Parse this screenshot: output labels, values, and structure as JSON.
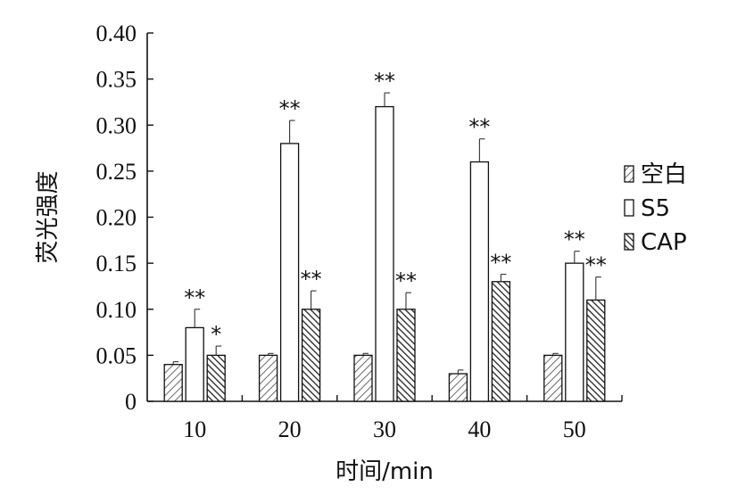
{
  "chart_data": {
    "type": "bar",
    "xlabel": "时间/min",
    "ylabel": "荧光强度",
    "categories": [
      "10",
      "20",
      "30",
      "40",
      "50"
    ],
    "ylim": [
      0,
      0.4
    ],
    "yticks": [
      "0",
      "0.05",
      "0.10",
      "0.15",
      "0.20",
      "0.25",
      "0.30",
      "0.35",
      "0.40"
    ],
    "grid": false,
    "legend_position": "right",
    "series": [
      {
        "name": "空白",
        "pattern": "light-diagonal",
        "values": [
          0.04,
          0.05,
          0.05,
          0.03,
          0.05
        ],
        "errors": [
          0.003,
          0.002,
          0.002,
          0.004,
          0.002
        ],
        "significance": [
          "",
          "",
          "",
          "",
          ""
        ]
      },
      {
        "name": "S5",
        "pattern": "empty",
        "values": [
          0.08,
          0.28,
          0.32,
          0.26,
          0.15
        ],
        "errors": [
          0.02,
          0.025,
          0.015,
          0.025,
          0.013
        ],
        "significance": [
          "**",
          "**",
          "**",
          "**",
          "**"
        ]
      },
      {
        "name": "CAP",
        "pattern": "dark-diagonal",
        "values": [
          0.05,
          0.1,
          0.1,
          0.13,
          0.11
        ],
        "errors": [
          0.01,
          0.02,
          0.018,
          0.008,
          0.025
        ],
        "significance": [
          "*",
          "**",
          "**",
          "**",
          "**"
        ]
      }
    ]
  }
}
